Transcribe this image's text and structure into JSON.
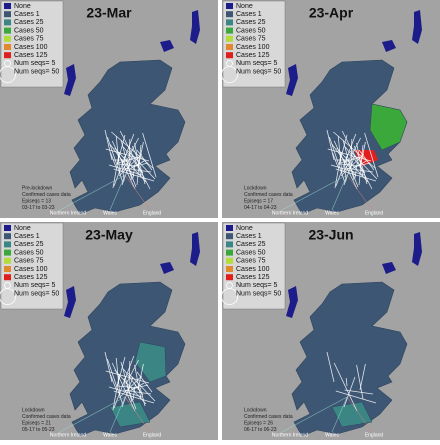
{
  "legend": [
    {
      "label": "None",
      "color": "#1c1c8a"
    },
    {
      "label": "Cases 1",
      "color": "#3d5674"
    },
    {
      "label": "Cases 25",
      "color": "#3b8585"
    },
    {
      "label": "Cases 50",
      "color": "#3aa83a"
    },
    {
      "label": "Cases 75",
      "color": "#b2dd3a"
    },
    {
      "label": "Cases 100",
      "color": "#e0892e"
    },
    {
      "label": "Cases 125",
      "color": "#e01e1e"
    },
    {
      "label": "Num seqs= 5"
    },
    {
      "label": "Num seqs= 50"
    }
  ],
  "regions": {
    "northern_ireland": "Northern Ireland",
    "wales": "Wales",
    "england": "England"
  },
  "panels": [
    {
      "title": "23-Mar",
      "notes": [
        "Pre-lockdown",
        "Confirmed cases data",
        "Episeqs = 13",
        "03-17 to 03-23"
      ]
    },
    {
      "title": "23-Apr",
      "notes": [
        "Lockdown",
        "Confirmed cases data",
        "Episeqs = 17",
        "04-17 to 04-23"
      ]
    },
    {
      "title": "23-May",
      "notes": [
        "Lockdown",
        "Confirmed cases data",
        "Episeqs = 21",
        "05-17 to 05-23"
      ]
    },
    {
      "title": "23-Jun",
      "notes": [
        "Lockdown",
        "Confirmed cases data",
        "Episeqs = 26",
        "06-17 to 06-23"
      ]
    }
  ]
}
